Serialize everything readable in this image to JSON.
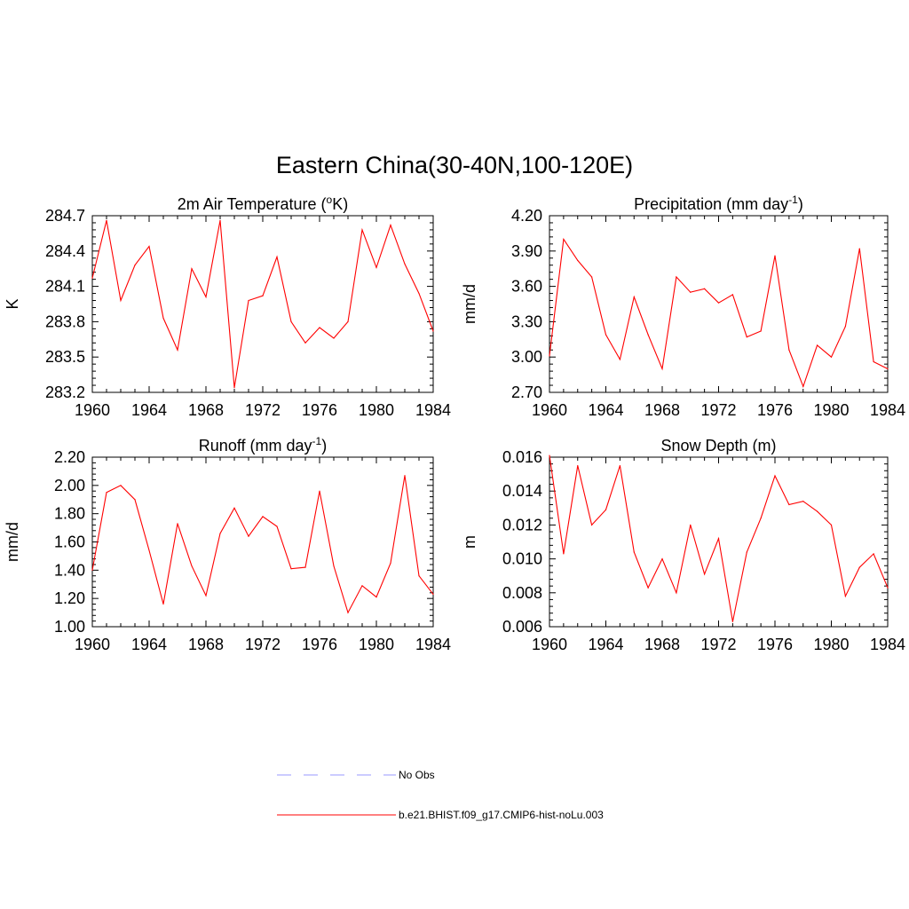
{
  "title": "Eastern China(30-40N,100-120E)",
  "legend": {
    "items": [
      {
        "label": "No Obs",
        "color": "#9999ff",
        "dash": true
      },
      {
        "label": "b.e21.BHIST.f09_g17.CMIP6-hist-noLu.003",
        "color": "#ff0000",
        "dash": false
      }
    ]
  },
  "chart_data": [
    {
      "type": "line",
      "title": {
        "text": "2m Air Temperature (",
        "sup": "o",
        "suffix": "K)"
      },
      "ylabel": "K",
      "xlim": [
        1960,
        1984
      ],
      "ylim": [
        283.2,
        284.7
      ],
      "xticks": [
        "1960",
        "1964",
        "1968",
        "1972",
        "1976",
        "1980",
        "1984"
      ],
      "yticks": [
        "283.2",
        "283.5",
        "283.8",
        "284.1",
        "284.4",
        "284.7"
      ],
      "x": [
        1960,
        1961,
        1962,
        1963,
        1964,
        1965,
        1966,
        1967,
        1968,
        1969,
        1970,
        1971,
        1972,
        1973,
        1974,
        1975,
        1976,
        1977,
        1978,
        1979,
        1980,
        1981,
        1982,
        1983,
        1984
      ],
      "series": [
        {
          "color": "#ff0000",
          "values": [
            284.17,
            284.66,
            283.98,
            284.28,
            284.44,
            283.83,
            283.56,
            284.25,
            284.01,
            284.66,
            283.24,
            283.98,
            284.02,
            284.35,
            283.8,
            283.62,
            283.75,
            283.66,
            283.8,
            284.58,
            284.26,
            284.62,
            284.29,
            284.04,
            283.72
          ]
        }
      ]
    },
    {
      "type": "line",
      "title": {
        "text": "Precipitation (mm day",
        "sup": "-1",
        "suffix": ")"
      },
      "ylabel": "mm/d",
      "xlim": [
        1960,
        1984
      ],
      "ylim": [
        2.7,
        4.2
      ],
      "xticks": [
        "1960",
        "1964",
        "1968",
        "1972",
        "1976",
        "1980",
        "1984"
      ],
      "yticks": [
        "2.70",
        "3.00",
        "3.30",
        "3.60",
        "3.90",
        "4.20"
      ],
      "x": [
        1960,
        1961,
        1962,
        1963,
        1964,
        1965,
        1966,
        1967,
        1968,
        1969,
        1970,
        1971,
        1972,
        1973,
        1974,
        1975,
        1976,
        1977,
        1978,
        1979,
        1980,
        1981,
        1982,
        1983,
        1984
      ],
      "series": [
        {
          "color": "#ff0000",
          "values": [
            3.01,
            4.0,
            3.82,
            3.68,
            3.19,
            2.98,
            3.51,
            3.19,
            2.9,
            3.68,
            3.55,
            3.58,
            3.46,
            3.53,
            3.17,
            3.22,
            3.86,
            3.06,
            2.75,
            3.1,
            3.0,
            3.26,
            3.92,
            2.96,
            2.9
          ]
        }
      ]
    },
    {
      "type": "line",
      "title": {
        "text": "Runoff (mm day",
        "sup": "-1",
        "suffix": ")"
      },
      "ylabel": "mm/d",
      "xlim": [
        1960,
        1984
      ],
      "ylim": [
        1.0,
        2.2
      ],
      "xticks": [
        "1960",
        "1964",
        "1968",
        "1972",
        "1976",
        "1980",
        "1984"
      ],
      "yticks": [
        "1.00",
        "1.20",
        "1.40",
        "1.60",
        "1.80",
        "2.00",
        "2.20"
      ],
      "x": [
        1960,
        1961,
        1962,
        1963,
        1964,
        1965,
        1966,
        1967,
        1968,
        1969,
        1970,
        1971,
        1972,
        1973,
        1974,
        1975,
        1976,
        1977,
        1978,
        1979,
        1980,
        1981,
        1982,
        1983,
        1984
      ],
      "series": [
        {
          "color": "#ff0000",
          "values": [
            1.4,
            1.95,
            2.0,
            1.9,
            1.54,
            1.16,
            1.73,
            1.43,
            1.22,
            1.66,
            1.84,
            1.64,
            1.78,
            1.71,
            1.41,
            1.42,
            1.96,
            1.43,
            1.1,
            1.29,
            1.21,
            1.45,
            2.07,
            1.36,
            1.23
          ]
        }
      ]
    },
    {
      "type": "line",
      "title": {
        "text": "Snow Depth (m)",
        "sup": "",
        "suffix": ""
      },
      "ylabel": "m",
      "xlim": [
        1960,
        1984
      ],
      "ylim": [
        0.006,
        0.016
      ],
      "xticks": [
        "1960",
        "1964",
        "1968",
        "1972",
        "1976",
        "1980",
        "1984"
      ],
      "yticks": [
        "0.006",
        "0.008",
        "0.010",
        "0.012",
        "0.014",
        "0.016"
      ],
      "x": [
        1960,
        1961,
        1962,
        1963,
        1964,
        1965,
        1966,
        1967,
        1968,
        1969,
        1970,
        1971,
        1972,
        1973,
        1974,
        1975,
        1976,
        1977,
        1978,
        1979,
        1980,
        1981,
        1982,
        1983,
        1984
      ],
      "series": [
        {
          "color": "#ff0000",
          "values": [
            0.0161,
            0.0103,
            0.0155,
            0.012,
            0.0129,
            0.0155,
            0.0104,
            0.0083,
            0.01,
            0.008,
            0.012,
            0.0091,
            0.0112,
            0.0063,
            0.0104,
            0.0124,
            0.0149,
            0.0132,
            0.0134,
            0.0128,
            0.012,
            0.0078,
            0.0095,
            0.0103,
            0.0083
          ]
        }
      ]
    }
  ]
}
